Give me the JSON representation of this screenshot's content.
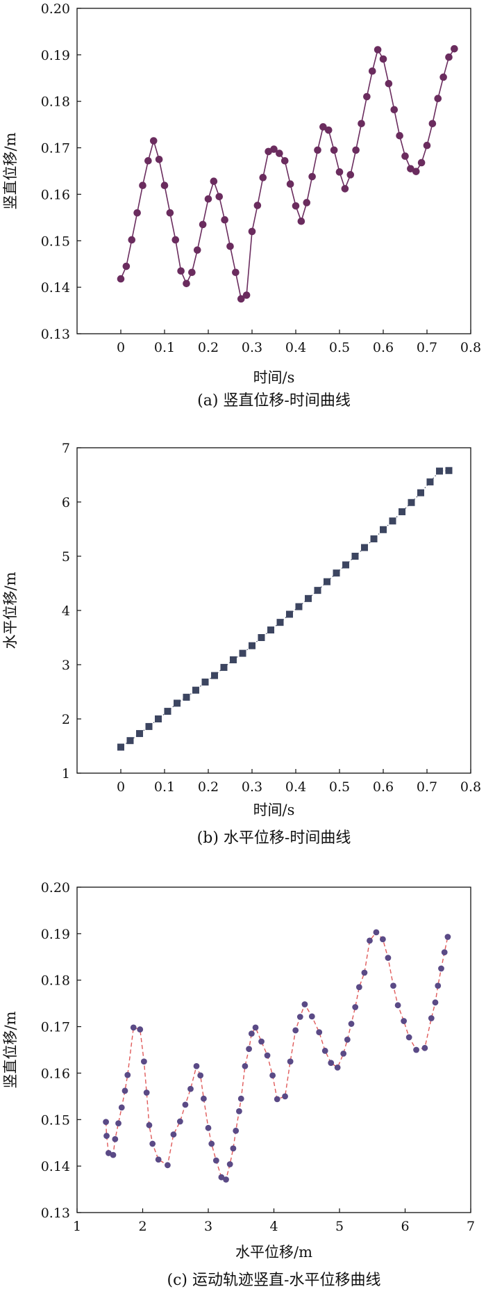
{
  "chart_data": [
    {
      "type": "line",
      "caption": "(a) 竖直位移-时间曲线",
      "xlabel": "时间/s",
      "ylabel": "竖直位移/m",
      "xlim": [
        -0.1,
        0.8
      ],
      "ylim": [
        0.13,
        0.2
      ],
      "xticks": [
        "0",
        "0.1",
        "0.2",
        "0.3",
        "0.4",
        "0.5",
        "0.6",
        "0.7",
        "0.8"
      ],
      "yticks": [
        "0.13",
        "0.14",
        "0.15",
        "0.16",
        "0.17",
        "0.18",
        "0.19",
        "0.20"
      ],
      "marker": "circle",
      "color": "#6a2c5e",
      "line_style": "solid",
      "grid": false,
      "series": [
        {
          "x": [
            0.0,
            0.0125,
            0.025,
            0.0375,
            0.05,
            0.0625,
            0.075,
            0.0875,
            0.1,
            0.1125,
            0.125,
            0.1375,
            0.15,
            0.1625,
            0.175,
            0.1875,
            0.2,
            0.2125,
            0.225,
            0.2375,
            0.25,
            0.2625,
            0.275,
            0.2875,
            0.3,
            0.3125,
            0.325,
            0.3375,
            0.35,
            0.3625,
            0.375,
            0.3875,
            0.4,
            0.4125,
            0.425,
            0.4375,
            0.45,
            0.4625,
            0.475,
            0.4875,
            0.5,
            0.5125,
            0.525,
            0.5375,
            0.55,
            0.5625,
            0.575,
            0.5875,
            0.6,
            0.6125,
            0.625,
            0.6375,
            0.65,
            0.6625,
            0.675,
            0.6875,
            0.7,
            0.7125,
            0.725,
            0.7375,
            0.75,
            0.7625
          ],
          "y": [
            0.1418,
            0.1445,
            0.1502,
            0.156,
            0.1619,
            0.1672,
            0.1715,
            0.1675,
            0.1619,
            0.156,
            0.1502,
            0.1435,
            0.1408,
            0.1432,
            0.148,
            0.1535,
            0.159,
            0.1628,
            0.1595,
            0.1545,
            0.1488,
            0.1432,
            0.1375,
            0.1383,
            0.152,
            0.1576,
            0.1636,
            0.1692,
            0.1697,
            0.1688,
            0.1672,
            0.1622,
            0.1575,
            0.1542,
            0.1582,
            0.1638,
            0.1695,
            0.1745,
            0.1738,
            0.1695,
            0.1648,
            0.1612,
            0.1642,
            0.1695,
            0.1752,
            0.181,
            0.1865,
            0.1911,
            0.1891,
            0.1838,
            0.1782,
            0.1726,
            0.1682,
            0.1655,
            0.1649,
            0.1668,
            0.1705,
            0.1752,
            0.1806,
            0.1852,
            0.1895,
            0.1913
          ]
        }
      ]
    },
    {
      "type": "line",
      "caption": "(b) 水平位移-时间曲线",
      "xlabel": "时间/s",
      "ylabel": "水平位移/m",
      "xlim": [
        -0.1,
        0.8
      ],
      "ylim": [
        1,
        7
      ],
      "xticks": [
        "0",
        "0.1",
        "0.2",
        "0.3",
        "0.4",
        "0.5",
        "0.6",
        "0.7",
        "0.8"
      ],
      "yticks": [
        "1",
        "2",
        "3",
        "4",
        "5",
        "6",
        "7"
      ],
      "marker": "square",
      "color": "#3c4560",
      "line_style": "dotted",
      "grid": false,
      "series": [
        {
          "x": [
            0.0,
            0.0214,
            0.0429,
            0.0643,
            0.0857,
            0.1071,
            0.1286,
            0.15,
            0.1714,
            0.1929,
            0.2143,
            0.2357,
            0.2571,
            0.2786,
            0.3,
            0.3214,
            0.3429,
            0.3643,
            0.3857,
            0.4071,
            0.4286,
            0.45,
            0.4714,
            0.4929,
            0.5143,
            0.5357,
            0.5571,
            0.5786,
            0.6,
            0.6214,
            0.6429,
            0.6643,
            0.6857,
            0.7071,
            0.7286,
            0.75
          ],
          "y": [
            1.48,
            1.6,
            1.73,
            1.86,
            2.0,
            2.14,
            2.29,
            2.4,
            2.53,
            2.68,
            2.8,
            2.95,
            3.09,
            3.21,
            3.35,
            3.5,
            3.64,
            3.78,
            3.93,
            4.07,
            4.22,
            4.37,
            4.53,
            4.69,
            4.84,
            5.0,
            5.16,
            5.32,
            5.49,
            5.65,
            5.82,
            5.99,
            6.17,
            6.37,
            6.57,
            6.58
          ]
        }
      ]
    },
    {
      "type": "line",
      "caption": "(c) 运动轨迹竖直-水平位移曲线",
      "xlabel": "水平位移/m",
      "ylabel": "竖直位移/m",
      "xlim": [
        1,
        7
      ],
      "ylim": [
        0.13,
        0.2
      ],
      "xticks": [
        "1",
        "2",
        "3",
        "4",
        "5",
        "6",
        "7"
      ],
      "yticks": [
        "0.13",
        "0.14",
        "0.15",
        "0.16",
        "0.17",
        "0.18",
        "0.19",
        "0.20"
      ],
      "marker": "circle",
      "color": "#5a4a86",
      "line_color": "#e05a5a",
      "line_style": "dashed",
      "grid": false,
      "series": [
        {
          "x": [
            1.44,
            1.45,
            1.48,
            1.55,
            1.58,
            1.63,
            1.68,
            1.73,
            1.77,
            1.86,
            1.96,
            2.02,
            2.06,
            2.1,
            2.15,
            2.24,
            2.38,
            2.47,
            2.57,
            2.65,
            2.73,
            2.82,
            2.88,
            2.93,
            3.0,
            3.05,
            3.12,
            3.2,
            3.27,
            3.33,
            3.38,
            3.42,
            3.47,
            3.5,
            3.56,
            3.62,
            3.66,
            3.72,
            3.81,
            3.9,
            3.98,
            4.05,
            4.17,
            4.25,
            4.33,
            4.4,
            4.47,
            4.58,
            4.69,
            4.78,
            4.87,
            4.97,
            5.06,
            5.12,
            5.18,
            5.24,
            5.3,
            5.38,
            5.46,
            5.56,
            5.66,
            5.74,
            5.82,
            5.89,
            5.98,
            6.06,
            6.17,
            6.3,
            6.4,
            6.46,
            6.5,
            6.55,
            6.6,
            6.65
          ],
          "y": [
            0.1495,
            0.1465,
            0.1428,
            0.1424,
            0.1458,
            0.1492,
            0.1526,
            0.1562,
            0.1596,
            0.1698,
            0.1694,
            0.1625,
            0.1558,
            0.1488,
            0.1448,
            0.1414,
            0.1402,
            0.1468,
            0.1496,
            0.1532,
            0.1566,
            0.1615,
            0.1595,
            0.1545,
            0.1482,
            0.1448,
            0.1412,
            0.1376,
            0.1371,
            0.1404,
            0.1438,
            0.1476,
            0.1518,
            0.1545,
            0.1615,
            0.1652,
            0.1685,
            0.1698,
            0.1668,
            0.1638,
            0.1595,
            0.1544,
            0.155,
            0.1625,
            0.1692,
            0.1721,
            0.1748,
            0.1722,
            0.1688,
            0.1648,
            0.1622,
            0.1612,
            0.1642,
            0.1672,
            0.1706,
            0.1742,
            0.1785,
            0.1816,
            0.1885,
            0.1903,
            0.1888,
            0.1848,
            0.1788,
            0.1746,
            0.1712,
            0.1677,
            0.165,
            0.1654,
            0.1718,
            0.1752,
            0.1788,
            0.1825,
            0.186,
            0.1893
          ]
        }
      ]
    }
  ]
}
